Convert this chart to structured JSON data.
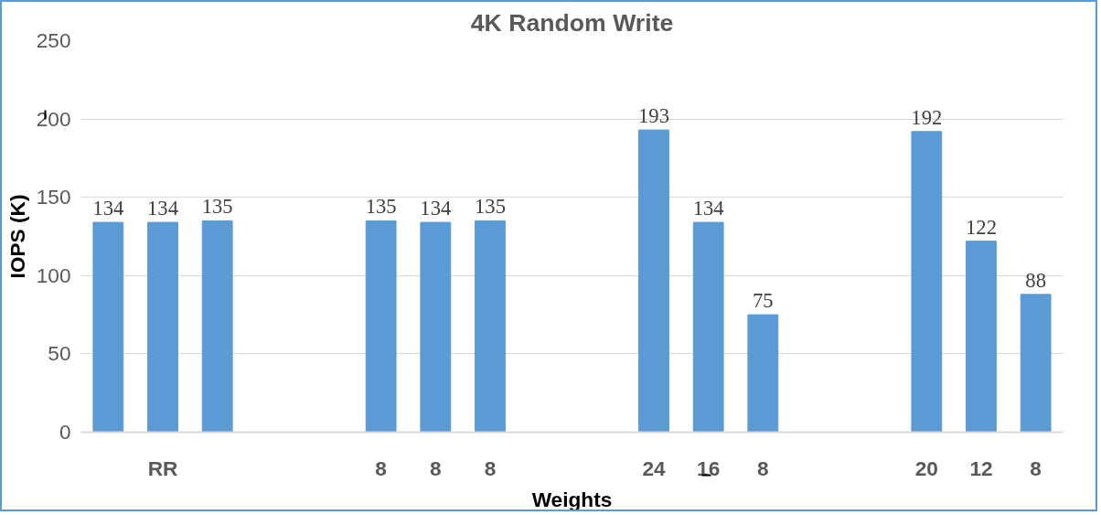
{
  "chart_data": {
    "type": "bar",
    "title": "4K Random Write",
    "xlabel": "Weights",
    "ylabel": "IOPS (K)",
    "categories": [
      null,
      "RR",
      null,
      null,
      null,
      "8",
      "8",
      "8",
      null,
      null,
      "24",
      "16",
      "8",
      null,
      null,
      "20",
      "12",
      "8"
    ],
    "values": [
      134,
      134,
      135,
      null,
      null,
      135,
      134,
      135,
      null,
      null,
      193,
      134,
      75,
      null,
      null,
      192,
      122,
      88
    ],
    "color": "#5b9bd5",
    "ylim": [
      0,
      250
    ],
    "yticks": [
      0,
      50,
      100,
      150,
      200,
      250
    ],
    "grid": "y",
    "data_labels": true
  }
}
